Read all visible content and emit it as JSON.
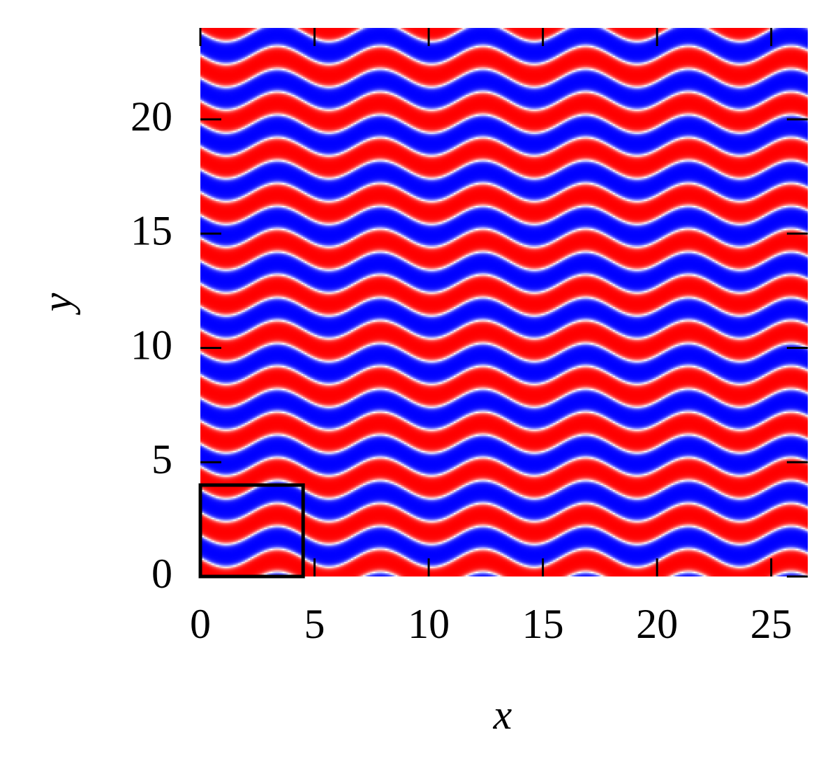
{
  "chart_data": {
    "type": "field",
    "xlabel": "x",
    "ylabel": "y",
    "xlim": [
      0,
      26.6
    ],
    "ylim": [
      0,
      24
    ],
    "xticks": [
      0,
      5,
      10,
      15,
      20,
      25
    ],
    "yticks": [
      0,
      5,
      10,
      15,
      20
    ],
    "colormap": [
      "#0000ff",
      "#ffffff",
      "#ff0000"
    ],
    "cell": {
      "xlim": [
        0,
        4.5
      ],
      "ylim": [
        0,
        4
      ],
      "color": "#000000"
    }
  }
}
